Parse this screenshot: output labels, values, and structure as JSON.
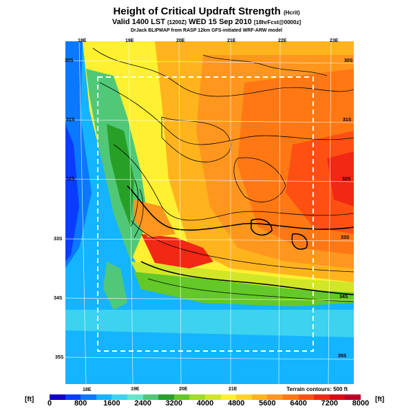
{
  "header": {
    "title": "Height of Critical Updraft Strength",
    "title_suffix": "(Hcrit)",
    "subtitle": "Valid 1400 LST",
    "subtitle_time": "(1200Z)",
    "subtitle_date": "WED 15 Sep 2010",
    "subtitle_forecast": "[18hrFcst@0000z]",
    "credit": "DrJack BLIPMAP from RASP 12km GFS-initiated WRF-ARW model"
  },
  "map": {
    "lon_labels_top": [
      "18E",
      "19E",
      "20E",
      "21E",
      "22E",
      "23E"
    ],
    "lon_labels_bottom": [
      "18E",
      "19E",
      "20E",
      "21E"
    ],
    "lat_labels_left": [
      "30S",
      "31S",
      "32S",
      "33S",
      "34S",
      "35S"
    ],
    "lat_labels_right": [
      "30S",
      "31S",
      "32S",
      "33S",
      "34S",
      "35S"
    ],
    "terrain_note": "Terrain contours: 500 ft"
  },
  "colorbar": {
    "unit_left": "[ft]",
    "unit_right": "[ft]",
    "labels": [
      "0",
      "800",
      "1600",
      "2400",
      "3200",
      "4000",
      "4800",
      "5600",
      "6400",
      "7200",
      "8000"
    ],
    "colors": [
      "#1400c8",
      "#0a3cff",
      "#0a78ff",
      "#14b4ff",
      "#3cd2f0",
      "#64e6c8",
      "#50c878",
      "#28a028",
      "#64c828",
      "#a0dc28",
      "#d2e628",
      "#fff032",
      "#ffd228",
      "#ffb41e",
      "#ff961e",
      "#ff7814",
      "#ff5014",
      "#f02814",
      "#dc0a14",
      "#be0028"
    ]
  }
}
